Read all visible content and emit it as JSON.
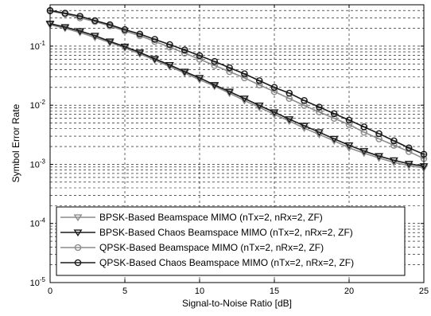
{
  "chart_data": {
    "type": "line",
    "xlabel": "Signal-to-Noise Ratio [dB]",
    "ylabel": "Symbol Error Rate",
    "xlim": [
      0,
      25
    ],
    "ylim": [
      1e-05,
      0.5
    ],
    "yscale": "log",
    "grid": true,
    "legend_position": "bottom-left",
    "x_ticks": [
      0,
      5,
      10,
      15,
      20,
      25
    ],
    "y_ticks": [
      {
        "value": 0.1,
        "base": "10",
        "exp": "-1"
      },
      {
        "value": 0.01,
        "base": "10",
        "exp": "-2"
      },
      {
        "value": 0.001,
        "base": "10",
        "exp": "-3"
      },
      {
        "value": 0.0001,
        "base": "10",
        "exp": "-4"
      },
      {
        "value": 1e-05,
        "base": "10",
        "exp": "-5"
      }
    ],
    "x": [
      0,
      1,
      2,
      3,
      4,
      5,
      6,
      7,
      8,
      9,
      10,
      11,
      12,
      13,
      14,
      15,
      16,
      17,
      18,
      19,
      20,
      21,
      22,
      23,
      24,
      25
    ],
    "series": [
      {
        "name": "BPSK-Based Beamspace MIMO (nTx=2, nRx=2, ZF)",
        "color": "#8c8c8c",
        "marker": "triangle-down",
        "values": [
          0.23,
          0.2,
          0.17,
          0.14,
          0.115,
          0.093,
          0.074,
          0.058,
          0.045,
          0.035,
          0.027,
          0.021,
          0.016,
          0.012,
          0.0092,
          0.007,
          0.0054,
          0.0041,
          0.0032,
          0.0025,
          0.0019,
          0.00155,
          0.00128,
          0.00108,
          0.00095,
          0.00087
        ]
      },
      {
        "name": "BPSK-Based Chaos Beamspace MIMO (nTx=2, nRx=2, ZF)",
        "color": "#1a1a1a",
        "marker": "triangle-down",
        "values": [
          0.24,
          0.21,
          0.18,
          0.15,
          0.12,
          0.098,
          0.078,
          0.061,
          0.048,
          0.037,
          0.029,
          0.022,
          0.017,
          0.013,
          0.0099,
          0.0076,
          0.0058,
          0.0045,
          0.0035,
          0.0027,
          0.0021,
          0.00168,
          0.00138,
          0.00117,
          0.00102,
          0.00093
        ]
      },
      {
        "name": "QPSK-Based Beamspace MIMO (nTx=2, nRx=2, ZF)",
        "color": "#8c8c8c",
        "marker": "circle",
        "values": [
          0.39,
          0.35,
          0.3,
          0.26,
          0.22,
          0.18,
          0.15,
          0.12,
          0.096,
          0.076,
          0.06,
          0.047,
          0.037,
          0.029,
          0.022,
          0.017,
          0.013,
          0.0099,
          0.0077,
          0.006,
          0.0047,
          0.0035,
          0.0027,
          0.0021,
          0.00165,
          0.00125
        ]
      },
      {
        "name": "QPSK-Based Chaos Beamspace MIMO (nTx=2, nRx=2, ZF)",
        "color": "#1a1a1a",
        "marker": "circle",
        "values": [
          0.4,
          0.36,
          0.32,
          0.27,
          0.23,
          0.19,
          0.16,
          0.13,
          0.106,
          0.086,
          0.069,
          0.055,
          0.043,
          0.034,
          0.026,
          0.02,
          0.016,
          0.012,
          0.0093,
          0.0072,
          0.0056,
          0.0043,
          0.0033,
          0.0025,
          0.0019,
          0.00148
        ]
      }
    ]
  }
}
